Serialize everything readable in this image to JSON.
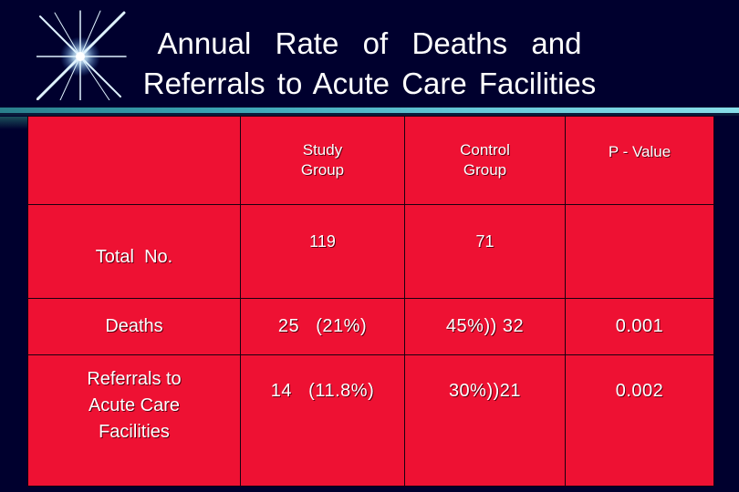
{
  "title": {
    "line1": "Annual  Rate  of  Deaths  and",
    "line2": "Referrals to Acute Care Facilities"
  },
  "table": {
    "headers": [
      "",
      "Study\nGroup",
      "Control\nGroup",
      "P - Value"
    ],
    "rows": [
      {
        "label": "Total  No.",
        "study": "119",
        "control": "71",
        "p": ""
      },
      {
        "label": "Deaths",
        "study": "25   (21%)",
        "control": "45%)) 32",
        "p": "0.001"
      },
      {
        "label": "Referrals to\nAcute Care\nFacilities",
        "study": "14   (11.8%)",
        "control": "30%))21",
        "p": "0.002"
      }
    ]
  },
  "colors": {
    "background": "#00002e",
    "table_fill": "#ee1133",
    "accent_rule": "#3aa3b3",
    "text": "#ffffff"
  },
  "icons": [
    "starburst-icon"
  ]
}
